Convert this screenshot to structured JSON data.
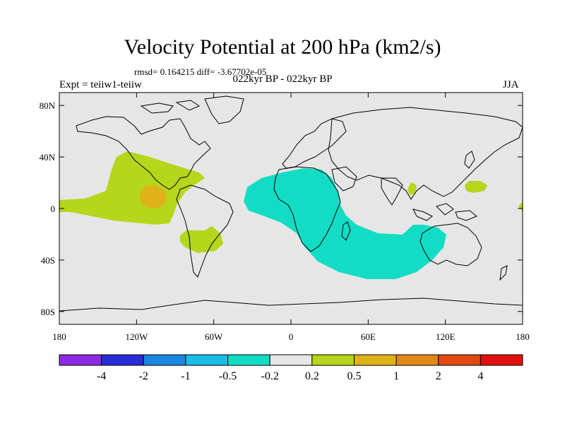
{
  "title": "Velocity Potential at 200 hPa (km2/s)",
  "stats": "rmsd= 0.164215 diff= -3.67702e-05",
  "experiment": "Expt = teiiw1-teiiw",
  "period": "022kyr BP - 022kyr BP",
  "season": "JJA",
  "map": {
    "background_color": "#e6e6e6",
    "coast_color": "#000000",
    "lon_ticks": [
      "180",
      "120W",
      "60W",
      "0",
      "60E",
      "120E",
      "180"
    ],
    "lat_ticks": [
      "80N",
      "40N",
      "0",
      "40S",
      "80S"
    ]
  },
  "colorbar": {
    "colors": [
      "#8a2be2",
      "#2b2bd8",
      "#1a86e0",
      "#19bde6",
      "#13dcc4",
      "#e6e6e6",
      "#b5d61a",
      "#e0b21a",
      "#e08818",
      "#e04a10",
      "#e01010"
    ],
    "labels": [
      "-4",
      "-2",
      "-1",
      "-0.5",
      "-0.2",
      "0.2",
      "0.5",
      "1",
      "2",
      "4"
    ]
  },
  "anomalies": [
    {
      "name": "pacific-positive",
      "level": "0.2 to 0.5",
      "color": "#b5d61a"
    },
    {
      "name": "pacific-core",
      "level": "0.5 to 1",
      "color": "#e0b21a"
    },
    {
      "name": "south-america-positive",
      "level": "0.2 to 0.5",
      "color": "#b5d61a"
    },
    {
      "name": "africa-indian-negative",
      "level": "-0.5 to -0.2",
      "color": "#13dcc4"
    },
    {
      "name": "bay-of-bengal-positive",
      "level": "0.2 to 0.5",
      "color": "#b5d61a"
    },
    {
      "name": "west-pacific-positive",
      "level": "0.2 to 0.5",
      "color": "#b5d61a"
    },
    {
      "name": "dateline-positive",
      "level": "0.2 to 0.5",
      "color": "#b5d61a"
    }
  ]
}
